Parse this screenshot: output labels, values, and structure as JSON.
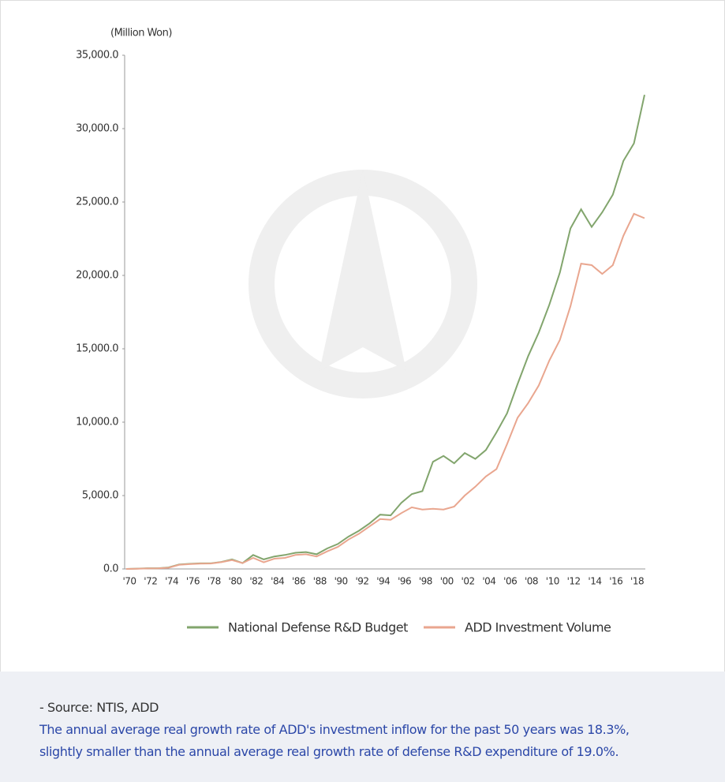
{
  "chart_data": {
    "type": "line",
    "unit_label": "(Million Won)",
    "categories": [
      "'70",
      null,
      "'72",
      null,
      "'74",
      null,
      "'76",
      null,
      "'78",
      null,
      "'80",
      null,
      "'82",
      null,
      "'84",
      null,
      "'86",
      null,
      "'88",
      null,
      "'90",
      null,
      "'92",
      null,
      "'94",
      null,
      "'96",
      null,
      "'98",
      null,
      "'00",
      null,
      "'02",
      null,
      "'04",
      null,
      "'06",
      null,
      "'08",
      null,
      "'10",
      null,
      "'12",
      null,
      "'14",
      null,
      "'16",
      null,
      "'18",
      null
    ],
    "series": [
      {
        "name": "National Defense R&D Budget",
        "color": "#82a56d",
        "values": [
          0,
          20,
          50,
          50,
          100,
          300,
          350,
          380,
          380,
          480,
          650,
          400,
          950,
          650,
          850,
          950,
          1100,
          1150,
          1000,
          1400,
          1700,
          2200,
          2600,
          3100,
          3700,
          3650,
          4500,
          5100,
          5300,
          7300,
          7700,
          7200,
          7900,
          7500,
          8100,
          9300,
          10600,
          12600,
          14500,
          16100,
          18000,
          20200,
          23200,
          24500,
          23300,
          24300,
          25500,
          27800,
          29000,
          32300
        ]
      },
      {
        "name": "ADD Investment Volume",
        "color": "#e9a68f",
        "values": [
          0,
          10,
          30,
          40,
          80,
          280,
          330,
          360,
          370,
          460,
          600,
          400,
          750,
          450,
          700,
          750,
          950,
          1000,
          850,
          1200,
          1500,
          2000,
          2400,
          2900,
          3400,
          3350,
          3800,
          4200,
          4050,
          4100,
          4050,
          4250,
          5000,
          5600,
          6300,
          6800,
          8500,
          10300,
          11300,
          12500,
          14200,
          15600,
          17900,
          20800,
          20700,
          20100,
          20700,
          22700,
          24200,
          23900
        ]
      }
    ],
    "ylim": [
      0,
      35000
    ],
    "yticks": [
      {
        "value": 0,
        "label": "0.0"
      },
      {
        "value": 5000,
        "label": "5,000.0"
      },
      {
        "value": 10000,
        "label": "10,000.0"
      },
      {
        "value": 15000,
        "label": "15,000.0"
      },
      {
        "value": 20000,
        "label": "20,000.0"
      },
      {
        "value": 25000,
        "label": "25,000.0"
      },
      {
        "value": 30000,
        "label": "30,000.0"
      },
      {
        "value": 35000,
        "label": "35,000.0"
      }
    ],
    "grid": false,
    "legend": "bottom"
  },
  "footer": {
    "source": "- Source: NTIS, ADD",
    "note_lines": [
      "The annual average real growth rate of ADD's investment inflow for the past 50 years was 18.3%,",
      "slightly smaller than the annual average real growth rate of defense R&D expenditure of 19.0%."
    ]
  }
}
